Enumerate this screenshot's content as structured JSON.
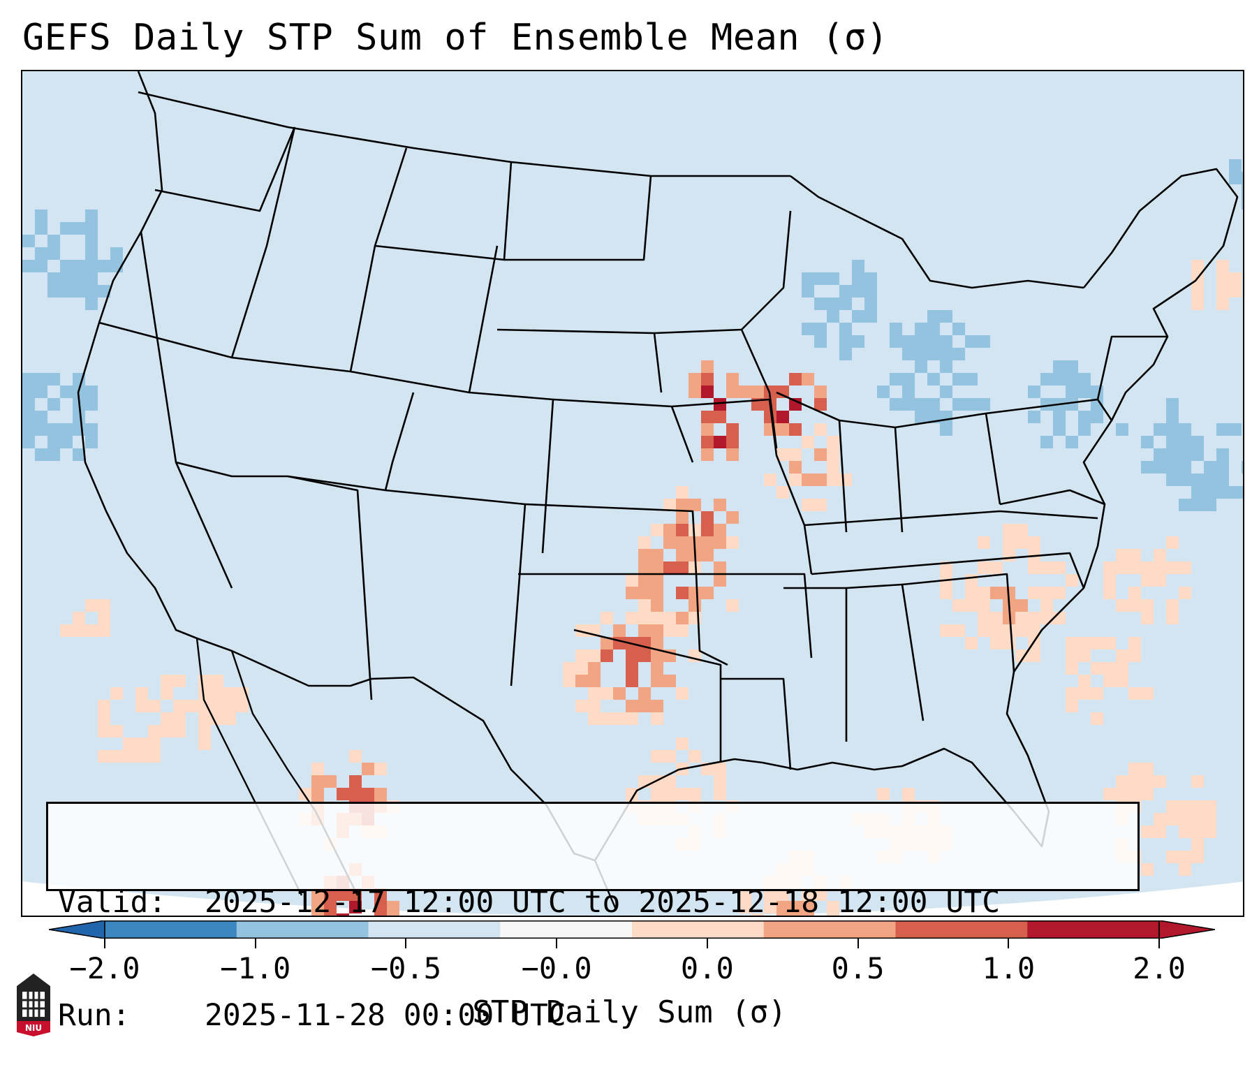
{
  "title": "GEFS Daily STP Sum of Ensemble Mean (σ)",
  "info": {
    "valid_key": "Valid:",
    "valid_value": "2025-12-17 12:00 UTC to 2025-12-18 12:00 UTC",
    "run_key": "Run:",
    "run_value": "2025-11-28 00:00 UTC"
  },
  "colorbar": {
    "label": "STP Daily Sum (σ)",
    "tick_labels": [
      "−2.0",
      "−1.0",
      "−0.5",
      "−0.0",
      "0.0",
      "0.5",
      "1.0",
      "2.0"
    ],
    "colors": [
      "#3c87c0",
      "#93c3df",
      "#d2e5f1",
      "#f7f7f7",
      "#fddbc7",
      "#f2a582",
      "#d6604d",
      "#b2182b"
    ],
    "extend": "both"
  },
  "map": {
    "region": "Contiguous United States",
    "background_color": "#d2e5f1"
  },
  "logo": {
    "text": "NIU",
    "icon": "university-building-icon"
  }
}
